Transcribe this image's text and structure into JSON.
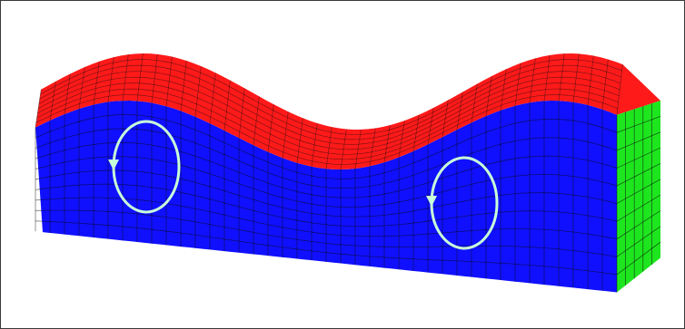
{
  "figure": {
    "colors": {
      "top_surface": "#ff1a1a",
      "front_face": "#1010ff",
      "side_face": "#1ee61e",
      "mesh_lines": "#0a0a0a",
      "circulation_arrows": "#c8ffd8",
      "frame_border": "#3a3a3a",
      "background": "#ffffff"
    },
    "icons": [
      "circulation-left-icon",
      "circulation-right-icon"
    ]
  }
}
